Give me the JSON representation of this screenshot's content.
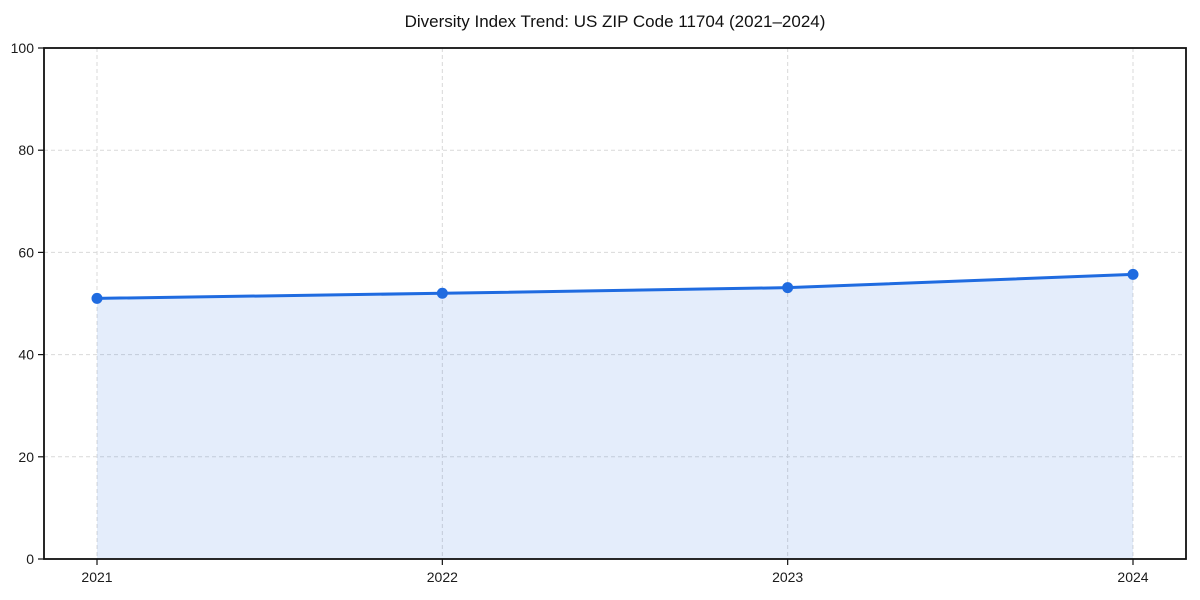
{
  "page": {
    "background": "#ffffff"
  },
  "chart_data": {
    "type": "area",
    "title": "Diversity Index Trend: US ZIP Code 11704 (2021–2024)",
    "categories": [
      "2021",
      "2022",
      "2023",
      "2024"
    ],
    "values": [
      51.0,
      52.0,
      53.1,
      55.7
    ],
    "xlabel": "",
    "ylabel": "",
    "ylim": [
      0,
      100
    ],
    "yticks": [
      0,
      20,
      40,
      60,
      80,
      100
    ],
    "grid": true,
    "grid_style": "dashed",
    "legend": "none",
    "style": {
      "line_color": "#1f6be0",
      "marker_color": "#1f6be0",
      "fill_color": "#1f6be0",
      "fill_opacity": 0.12,
      "grid_color": "#d9d9d9",
      "axis_color": "#111111",
      "tick_text_color": "#1a1a1a",
      "background": "#ffffff",
      "line_width": 3,
      "marker_radius": 5.5
    }
  }
}
